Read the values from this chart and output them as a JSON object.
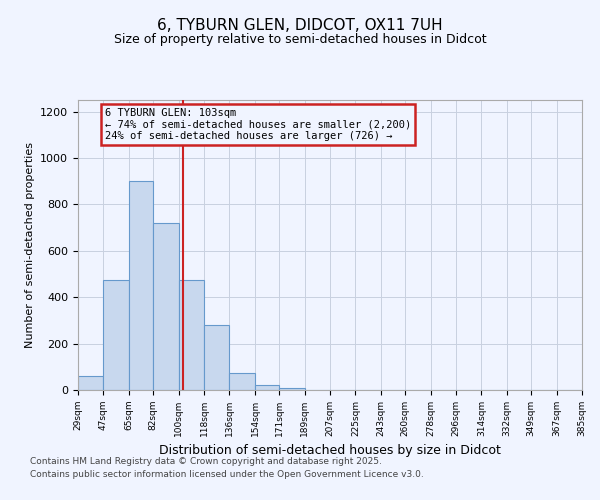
{
  "title": "6, TYBURN GLEN, DIDCOT, OX11 7UH",
  "subtitle": "Size of property relative to semi-detached houses in Didcot",
  "xlabel": "Distribution of semi-detached houses by size in Didcot",
  "ylabel": "Number of semi-detached properties",
  "bin_edges": [
    29,
    47,
    65,
    82,
    100,
    118,
    136,
    154,
    171,
    189,
    207,
    225,
    243,
    260,
    278,
    296,
    314,
    332,
    349,
    367,
    385
  ],
  "bar_heights": [
    60,
    475,
    900,
    720,
    475,
    280,
    75,
    20,
    10,
    0,
    0,
    0,
    0,
    0,
    0,
    0,
    0,
    0,
    0,
    0
  ],
  "highlight_bin_index": 4,
  "bar_color_normal": "#c8d8ee",
  "bar_edge_color": "#6699cc",
  "vline_color": "#cc2222",
  "vline_x": 103,
  "annotation_text": "6 TYBURN GLEN: 103sqm\n← 74% of semi-detached houses are smaller (2,200)\n24% of semi-detached houses are larger (726) →",
  "annotation_box_color": "#cc2222",
  "ylim": [
    0,
    1250
  ],
  "yticks": [
    0,
    200,
    400,
    600,
    800,
    1000,
    1200
  ],
  "tick_labels": [
    "29sqm",
    "47sqm",
    "65sqm",
    "82sqm",
    "100sqm",
    "118sqm",
    "136sqm",
    "154sqm",
    "171sqm",
    "189sqm",
    "207sqm",
    "225sqm",
    "243sqm",
    "260sqm",
    "278sqm",
    "296sqm",
    "314sqm",
    "332sqm",
    "349sqm",
    "367sqm",
    "385sqm"
  ],
  "footer_line1": "Contains HM Land Registry data © Crown copyright and database right 2025.",
  "footer_line2": "Contains public sector information licensed under the Open Government Licence v3.0.",
  "background_color": "#f0f4ff",
  "grid_color": "#c8d0e0",
  "title_fontsize": 11,
  "subtitle_fontsize": 9,
  "xlabel_fontsize": 9,
  "ylabel_fontsize": 8
}
